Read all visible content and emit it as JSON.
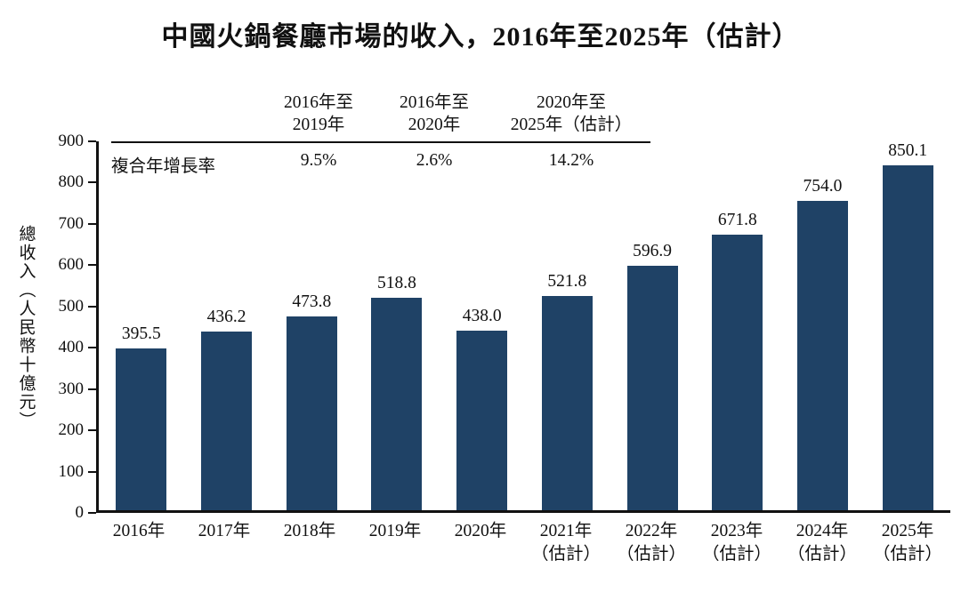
{
  "page": {
    "title": "中國火鍋餐廳市場的收入，2016年至2025年（估計）"
  },
  "chart_data": {
    "type": "bar",
    "title": "中國火鍋餐廳市場的收入，2016年至2025年（估計）",
    "ylabel": "總收入（人民幣十億元）",
    "xlabel": "",
    "ylim": [
      0,
      900
    ],
    "ytick_step": 100,
    "bar_color": "#1F4266",
    "grid": "off",
    "legend": "none",
    "categories": [
      [
        "2016年"
      ],
      [
        "2017年"
      ],
      [
        "2018年"
      ],
      [
        "2019年"
      ],
      [
        "2020年"
      ],
      [
        "2021年",
        "（估計）"
      ],
      [
        "2022年",
        "（估計）"
      ],
      [
        "2023年",
        "（估計）"
      ],
      [
        "2024年",
        "（估計）"
      ],
      [
        "2025年",
        "（估計）"
      ]
    ],
    "values": [
      395.5,
      436.2,
      473.8,
      518.8,
      438.0,
      521.8,
      596.9,
      671.8,
      754.0,
      850.1
    ],
    "value_labels": [
      "395.5",
      "436.2",
      "473.8",
      "518.8",
      "438.0",
      "521.8",
      "596.9",
      "671.8",
      "754.0",
      "850.1"
    ],
    "cagr_table": {
      "row_label": "複合年增長率",
      "columns": [
        {
          "period_lines": [
            "2016年至",
            "2019年"
          ],
          "value": "9.5%"
        },
        {
          "period_lines": [
            "2016年至",
            "2020年"
          ],
          "value": "2.6%"
        },
        {
          "period_lines": [
            "2020年至",
            "2025年（估計）"
          ],
          "value": "14.2%"
        }
      ]
    }
  }
}
